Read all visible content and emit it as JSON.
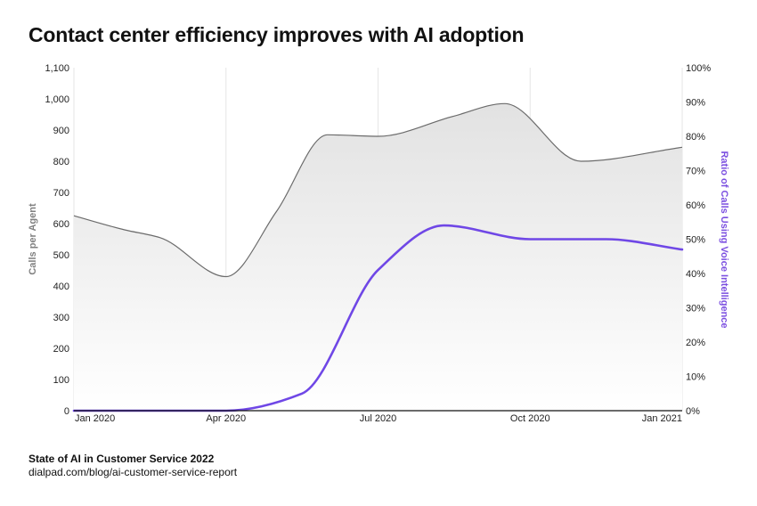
{
  "title": "Contact center efficiency improves with AI adoption",
  "source": {
    "title": "State of AI in Customer Service 2022",
    "url": "dialpad.com/blog/ai-customer-service-report"
  },
  "colors": {
    "area_line": "#6b6b6b",
    "area_fill_top": "#e2e2e2",
    "area_fill_bottom": "#ffffff",
    "voice_line": "#6f47e6",
    "gridline": "#e6e6e6",
    "axis": "#111111"
  },
  "chart_data": {
    "type": "area",
    "title": "Contact center efficiency improves with AI adoption",
    "x_ticks": [
      "Jan 2020",
      "Apr 2020",
      "Jul 2020",
      "Oct 2020",
      "Jan 2021"
    ],
    "xlim": [
      0,
      12
    ],
    "y_left": {
      "label": "Calls per Agent",
      "range": [
        0,
        1100
      ],
      "ticks": [
        0,
        100,
        200,
        300,
        400,
        500,
        600,
        700,
        800,
        900,
        1000,
        1100
      ],
      "tick_labels": [
        "0",
        "100",
        "200",
        "300",
        "400",
        "500",
        "600",
        "700",
        "800",
        "900",
        "1,000",
        "1,100"
      ]
    },
    "y_right": {
      "label": "Ratio of Calls Using Voice Intelligence",
      "range": [
        0,
        100
      ],
      "ticks": [
        0,
        10,
        20,
        30,
        40,
        50,
        60,
        70,
        80,
        90,
        100
      ],
      "tick_labels": [
        "0%",
        "10%",
        "20%",
        "30%",
        "40%",
        "50%",
        "60%",
        "70%",
        "80%",
        "90%",
        "100%"
      ]
    },
    "series": [
      {
        "name": "Calls per Agent",
        "axis": "left",
        "style": "area",
        "x": [
          0,
          1,
          1.7,
          3,
          4,
          5,
          6,
          7.5,
          8.5,
          10,
          12
        ],
        "values": [
          625,
          580,
          555,
          430,
          640,
          885,
          880,
          945,
          985,
          800,
          845
        ]
      },
      {
        "name": "Ratio of Calls Using Voice Intelligence",
        "axis": "right",
        "style": "line",
        "x": [
          0,
          2,
          3,
          4.5,
          6,
          7.3,
          9,
          10.5,
          12
        ],
        "values": [
          0,
          0,
          0,
          5,
          41,
          54,
          50,
          50,
          47
        ]
      }
    ]
  }
}
